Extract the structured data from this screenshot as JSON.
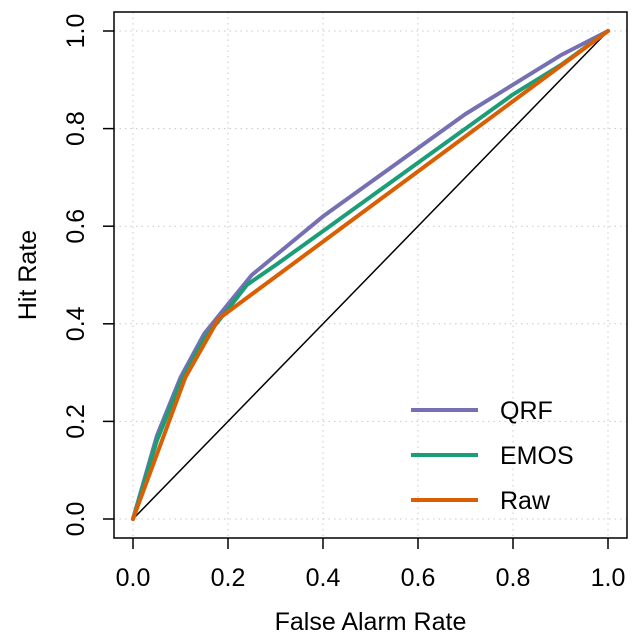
{
  "chart_data": {
    "type": "line",
    "title": "",
    "xlabel": "False Alarm Rate",
    "ylabel": "Hit Rate",
    "xlim": [
      0,
      1
    ],
    "ylim": [
      0,
      1
    ],
    "xticks": [
      "0.0",
      "0.2",
      "0.4",
      "0.6",
      "0.8",
      "1.0"
    ],
    "yticks": [
      "0.0",
      "0.2",
      "0.4",
      "0.6",
      "0.8",
      "1.0"
    ],
    "grid": true,
    "legend_position": "bottom-right",
    "diagonal_reference": true,
    "series": [
      {
        "name": "QRF",
        "color": "#7570b3",
        "x": [
          0,
          0.05,
          0.1,
          0.15,
          0.2,
          0.25,
          0.3,
          0.4,
          0.5,
          0.6,
          0.7,
          0.8,
          0.9,
          1.0
        ],
        "y": [
          0,
          0.17,
          0.29,
          0.38,
          0.44,
          0.5,
          0.54,
          0.62,
          0.69,
          0.76,
          0.83,
          0.89,
          0.95,
          1.0
        ]
      },
      {
        "name": "EMOS",
        "color": "#1b9e77",
        "x": [
          0,
          0.05,
          0.1,
          0.15,
          0.2,
          0.24,
          0.3,
          0.4,
          0.5,
          0.6,
          0.7,
          0.8,
          0.9,
          1.0
        ],
        "y": [
          0,
          0.16,
          0.28,
          0.37,
          0.43,
          0.48,
          0.52,
          0.59,
          0.66,
          0.73,
          0.8,
          0.87,
          0.93,
          1.0
        ]
      },
      {
        "name": "Raw",
        "color": "#d95f02",
        "x": [
          0,
          0.11,
          0.18,
          1.0
        ],
        "y": [
          0,
          0.29,
          0.41,
          1.0
        ]
      }
    ]
  }
}
